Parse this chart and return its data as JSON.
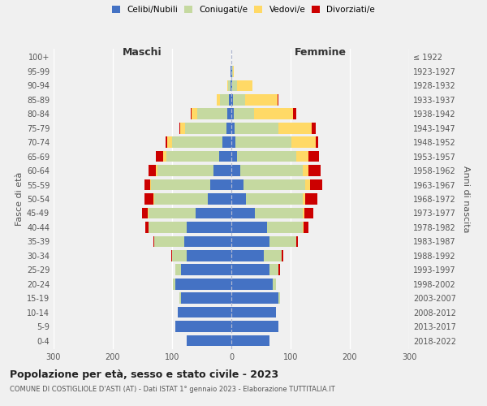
{
  "age_groups": [
    "0-4",
    "5-9",
    "10-14",
    "15-19",
    "20-24",
    "25-29",
    "30-34",
    "35-39",
    "40-44",
    "45-49",
    "50-54",
    "55-59",
    "60-64",
    "65-69",
    "70-74",
    "75-79",
    "80-84",
    "85-89",
    "90-94",
    "95-99",
    "100+"
  ],
  "birth_years": [
    "2018-2022",
    "2013-2017",
    "2008-2012",
    "2003-2007",
    "1998-2002",
    "1993-1997",
    "1988-1992",
    "1983-1987",
    "1978-1982",
    "1973-1977",
    "1968-1972",
    "1963-1967",
    "1958-1962",
    "1953-1957",
    "1948-1952",
    "1943-1947",
    "1938-1942",
    "1933-1937",
    "1928-1932",
    "1923-1927",
    "≤ 1922"
  ],
  "maschi": {
    "celibi": [
      75,
      95,
      90,
      85,
      95,
      85,
      75,
      80,
      75,
      60,
      40,
      35,
      30,
      20,
      15,
      8,
      7,
      4,
      2,
      1,
      0
    ],
    "coniugati": [
      0,
      0,
      0,
      2,
      4,
      10,
      25,
      50,
      65,
      80,
      90,
      100,
      95,
      90,
      85,
      70,
      50,
      15,
      3,
      1,
      0
    ],
    "vedovi": [
      0,
      0,
      0,
      0,
      0,
      0,
      0,
      0,
      0,
      1,
      2,
      2,
      2,
      5,
      8,
      8,
      10,
      5,
      2,
      0,
      0
    ],
    "divorziati": [
      0,
      0,
      0,
      0,
      0,
      0,
      2,
      2,
      5,
      10,
      15,
      10,
      13,
      12,
      3,
      2,
      2,
      0,
      0,
      0,
      0
    ]
  },
  "femmine": {
    "nubili": [
      65,
      80,
      75,
      80,
      70,
      65,
      55,
      65,
      60,
      40,
      25,
      20,
      15,
      10,
      7,
      5,
      4,
      3,
      2,
      1,
      0
    ],
    "coniugate": [
      0,
      0,
      0,
      2,
      5,
      15,
      30,
      45,
      60,
      80,
      95,
      105,
      105,
      100,
      95,
      75,
      35,
      20,
      8,
      2,
      0
    ],
    "vedove": [
      0,
      0,
      0,
      0,
      0,
      0,
      0,
      0,
      2,
      3,
      5,
      8,
      10,
      20,
      40,
      55,
      65,
      55,
      25,
      1,
      0
    ],
    "divorziate": [
      0,
      0,
      0,
      0,
      0,
      2,
      3,
      3,
      8,
      15,
      20,
      20,
      20,
      18,
      5,
      8,
      5,
      2,
      1,
      0,
      0
    ]
  },
  "colors": {
    "celibi_nubili": "#4472C4",
    "coniugati": "#C5D9A0",
    "vedovi": "#FFD966",
    "divorziati": "#CC0000"
  },
  "xlim": 300,
  "title": "Popolazione per età, sesso e stato civile - 2023",
  "subtitle": "COMUNE DI COSTIGLIOLE D'ASTI (AT) - Dati ISTAT 1° gennaio 2023 - Elaborazione TUTTITALIA.IT",
  "ylabel_left": "Fasce di età",
  "ylabel_right": "Anni di nascita",
  "xlabel_maschi": "Maschi",
  "xlabel_femmine": "Femmine",
  "bg_color": "#f0f0f0",
  "grid_color": "#ffffff"
}
